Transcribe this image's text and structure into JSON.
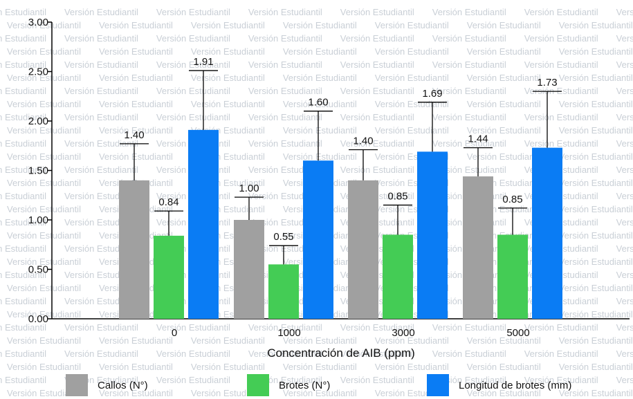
{
  "watermark_text": "Versión Estudiantil",
  "chart_data": {
    "type": "bar",
    "xlabel": "Concentración de AIB (ppm)",
    "ylabel": "",
    "ylim": [
      0,
      3.0
    ],
    "yticks": [
      "0.00",
      "0.50",
      "1.00",
      "1.50",
      "2.00",
      "2.50",
      "3.00"
    ],
    "categories": [
      "0",
      "1000",
      "3000",
      "5000"
    ],
    "grid": false,
    "legend_position": "bottom",
    "series": [
      {
        "name": "Callos (N°)",
        "color": "#a0a0a0",
        "values": [
          1.4,
          1.0,
          1.4,
          1.44
        ],
        "errors": [
          0.37,
          0.23,
          0.31,
          0.29
        ],
        "labels": [
          "1.40",
          "1.00",
          "1.40",
          "1.44"
        ]
      },
      {
        "name": "Brotes (N°)",
        "color": "#44cc55",
        "values": [
          0.84,
          0.55,
          0.85,
          0.85
        ],
        "errors": [
          0.25,
          0.19,
          0.3,
          0.27
        ],
        "labels": [
          "0.84",
          "0.55",
          "0.85",
          "0.85"
        ]
      },
      {
        "name": "Longitud de brotes (mm)",
        "color": "#0a7cf4",
        "values": [
          1.91,
          1.6,
          1.69,
          1.73
        ],
        "errors": [
          0.6,
          0.5,
          0.5,
          0.57
        ],
        "labels": [
          "1.91",
          "1.60",
          "1.69",
          "1.73"
        ]
      }
    ]
  }
}
